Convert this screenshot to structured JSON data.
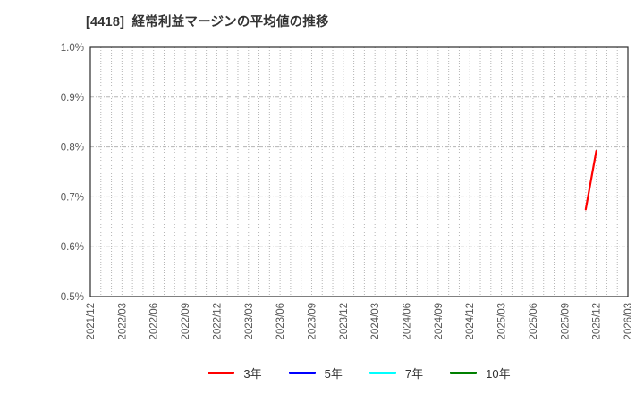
{
  "title": "[4418]  経常利益マージンの平均値の推移",
  "colors": {
    "background": "#ffffff",
    "frame": "#2b2b2b",
    "grid": "#b5b5b5",
    "tick_label": "#555555",
    "title_text": "#333333"
  },
  "chart_data": {
    "type": "line",
    "title": "[4418]  経常利益マージンの平均値の推移",
    "xlabel": "",
    "ylabel": "",
    "ylim": [
      0.5,
      1.0
    ],
    "y_ticks": [
      0.5,
      0.6,
      0.7,
      0.8,
      0.9,
      1.0
    ],
    "y_tick_suffix": "%",
    "x_start": "2021/12",
    "x_end": "2026/03",
    "x_total_months": 51,
    "x_tick_labels": [
      "2021/12",
      "2022/03",
      "2022/06",
      "2022/09",
      "2022/12",
      "2023/03",
      "2023/06",
      "2023/09",
      "2023/12",
      "2024/03",
      "2024/06",
      "2024/09",
      "2024/12",
      "2025/03",
      "2025/06",
      "2025/09",
      "2025/12",
      "2026/03"
    ],
    "grid": {
      "vertical": "monthly dotted",
      "horizontal": "dashed at 0.1% steps"
    },
    "legend_position": "bottom-center",
    "series": [
      {
        "name": "3年",
        "color": "#ff0000",
        "points": [
          {
            "x": "2025/11",
            "y": 0.675
          },
          {
            "x": "2025/12",
            "y": 0.792
          }
        ]
      },
      {
        "name": "5年",
        "color": "#0000ff",
        "points": []
      },
      {
        "name": "7年",
        "color": "#00ffff",
        "points": []
      },
      {
        "name": "10年",
        "color": "#008000",
        "points": []
      }
    ]
  }
}
